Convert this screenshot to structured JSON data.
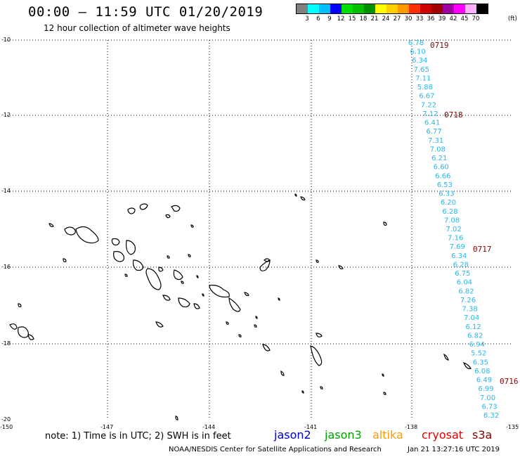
{
  "header": {
    "title": "00:00 — 11:59 UTC 01/20/2019",
    "subtitle": "12 hour collection of altimeter wave heights"
  },
  "legend": {
    "colors": [
      "#808080",
      "#00ffff",
      "#00bfff",
      "#0000ff",
      "#00e000",
      "#00c000",
      "#009000",
      "#ffff00",
      "#ffd000",
      "#ff9900",
      "#ff3000",
      "#d00000",
      "#a00000",
      "#a000a0",
      "#ff00ff",
      "#ffb0ff",
      "#000000"
    ],
    "labels": [
      "3",
      "6",
      "9",
      "12",
      "15",
      "18",
      "21",
      "24",
      "27",
      "30",
      "33",
      "36",
      "39",
      "42",
      "45",
      "70"
    ],
    "unit": "(ft)"
  },
  "map": {
    "lon_labels": [
      "-150",
      "-147",
      "-144",
      "-141",
      "-138",
      "-135"
    ],
    "lat_labels": [
      "-10",
      "-12",
      "-14",
      "-16",
      "-18",
      "-20"
    ],
    "track_color": "#29b6e8",
    "time_color": "#800000",
    "swh_values": [
      "6.78",
      "6.10",
      "6.34",
      "7.65",
      "7.11",
      "5.88",
      "6.67",
      "7.22",
      "7.12",
      "6.41",
      "6.77",
      "7.31",
      "7.08",
      "6.21",
      "6.60",
      "6.66",
      "6.53",
      "6.33",
      "6.20",
      "6.28",
      "7.08",
      "7.02",
      "7.16",
      "7.69",
      "6.34",
      "6.28",
      "6.75",
      "6.04",
      "6.82",
      "7.26",
      "7.38",
      "7.04",
      "6.12",
      "6.82",
      "6.94",
      "5.52",
      "6.35",
      "6.08",
      "6.49",
      "6.99",
      "7.00",
      "6.73",
      "6.32"
    ],
    "time_labels": [
      "0719",
      "0718",
      "0717",
      "0716"
    ]
  },
  "footer": {
    "note": "note: 1) Time is in UTC; 2) SWH is in feet",
    "satellites": [
      {
        "name": "jason2",
        "color": "#0000cc"
      },
      {
        "name": "jason3",
        "color": "#00a000"
      },
      {
        "name": "altika",
        "color": "#ff9900"
      },
      {
        "name": "cryosat",
        "color": "#e00000"
      },
      {
        "name": "s3a",
        "color": "#800000"
      }
    ],
    "credit": "NOAA/NESDIS Center for Satellite Applications and Research",
    "timestamp": "Jan 21 13:27:16 UTC 2019"
  }
}
